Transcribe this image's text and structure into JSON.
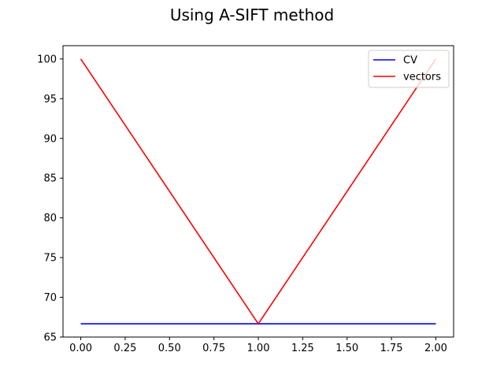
{
  "chart_data": {
    "type": "line",
    "title": "Using A-SIFT method",
    "xlabel": "",
    "ylabel": "",
    "x": [
      0,
      1,
      2
    ],
    "xlim": [
      -0.1,
      2.1
    ],
    "ylim": [
      65,
      101.67
    ],
    "xticks": [
      0,
      0.25,
      0.5,
      0.75,
      1,
      1.25,
      1.5,
      1.75,
      2
    ],
    "xtick_labels": [
      "0.00",
      "0.25",
      "0.50",
      "0.75",
      "1.00",
      "1.25",
      "1.50",
      "1.75",
      "2.00"
    ],
    "yticks": [
      65,
      70,
      75,
      80,
      85,
      90,
      95,
      100
    ],
    "ytick_labels": [
      "65",
      "70",
      "75",
      "80",
      "85",
      "90",
      "95",
      "100"
    ],
    "grid": false,
    "legend_position": "upper right",
    "series": [
      {
        "name": "CV",
        "color": "#0000ff",
        "values": [
          66.67,
          66.67,
          66.67
        ]
      },
      {
        "name": "vectors",
        "color": "#ff0000",
        "values": [
          100,
          66.67,
          100
        ]
      }
    ]
  }
}
